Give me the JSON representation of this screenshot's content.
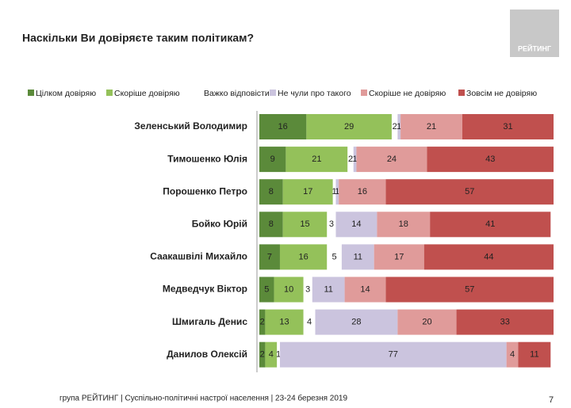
{
  "chart_data": {
    "type": "stacked-bar-horizontal",
    "title": "Наскільки Ви довіряєте таким політикам?",
    "categories": [
      "Зеленський Володимир",
      "Тимошенко Юлія",
      "Порошенко Петро",
      "Бойко Юрій",
      "Саакашвілі Михайло",
      "Медведчук Віктор",
      "Шмигаль Денис",
      "Данилов Олексій"
    ],
    "series": [
      {
        "name": "Цілком довіряю",
        "color": "#5b8a3a",
        "values": [
          16,
          9,
          8,
          8,
          7,
          5,
          2,
          2
        ]
      },
      {
        "name": "Скоріше довіряю",
        "color": "#94c15a",
        "values": [
          29,
          21,
          17,
          15,
          16,
          10,
          13,
          4
        ]
      },
      {
        "name": "Важко відповісти",
        "color": "#ffffff",
        "values": [
          2,
          2,
          1,
          3,
          5,
          3,
          4,
          1
        ]
      },
      {
        "name": "Не чули про такого",
        "color": "#cbc4de",
        "values": [
          1,
          1,
          1,
          14,
          11,
          11,
          28,
          77
        ]
      },
      {
        "name": "Скоріше не довіряю",
        "color": "#e09b9a",
        "values": [
          21,
          24,
          16,
          18,
          17,
          14,
          20,
          4
        ]
      },
      {
        "name": "Зовсім не довіряю",
        "color": "#c0504e",
        "values": [
          31,
          43,
          57,
          41,
          44,
          57,
          33,
          11
        ]
      }
    ],
    "xlim": [
      0,
      100
    ]
  },
  "logo": "РЕЙТИНГ",
  "footer": "група РЕЙТИНГ | Суспільно-політичні настрої населення  | 23-24 березня 2019",
  "page_number": 7
}
